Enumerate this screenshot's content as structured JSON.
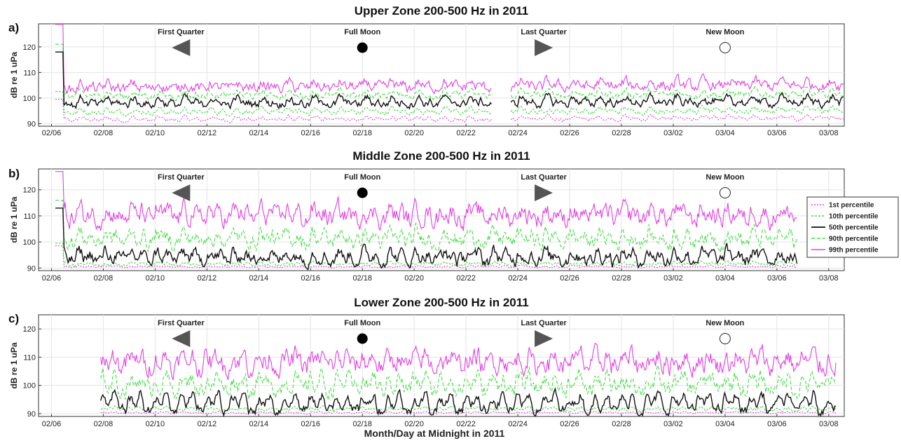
{
  "chart_data": [
    {
      "type": "line",
      "panel_label": "a)",
      "title": "Upper Zone 200-500 Hz in 2011",
      "ylabel": "dB re 1 uPa",
      "xlabel": "",
      "ylim": [
        89,
        129
      ],
      "yticks": [
        90,
        100,
        110,
        120
      ],
      "xlim": [
        -0.5,
        30.6
      ],
      "x_tick_labels": [
        "02/06",
        "02/08",
        "02/10",
        "02/12",
        "02/14",
        "02/16",
        "02/18",
        "02/20",
        "02/22",
        "02/24",
        "02/26",
        "02/28",
        "03/02",
        "03/04",
        "03/06",
        "03/08"
      ],
      "grid": true,
      "moon_phases": [
        {
          "label": "First Quarter",
          "day": 5,
          "symbol": "left-triangle"
        },
        {
          "label": "Full Moon",
          "day": 12,
          "symbol": "filled-circle"
        },
        {
          "label": "Last Quarter",
          "day": 19,
          "symbol": "right-triangle"
        },
        {
          "label": "New Moon",
          "day": 26,
          "symbol": "open-circle"
        }
      ],
      "data_range_days": [
        0.15,
        30.6
      ],
      "gap_days": [
        17.0,
        17.7
      ],
      "spike": {
        "day": 0.3,
        "p99": 129,
        "p50": 118
      },
      "series": [
        {
          "name": "1st percentile",
          "base": 91.5,
          "daily_amp": 1.2,
          "noise": 0.6,
          "color": "#e040e0"
        },
        {
          "name": "10th percentile",
          "base": 94.5,
          "daily_amp": 1.5,
          "noise": 0.8,
          "color": "#44dd44"
        },
        {
          "name": "50th percentile",
          "base": 98,
          "daily_amp": 2.5,
          "noise": 1.2,
          "color": "#111111"
        },
        {
          "name": "90th percentile",
          "base": 101,
          "daily_amp": 1.8,
          "noise": 1.0,
          "color": "#44dd44"
        },
        {
          "name": "99th percentile",
          "base": 104,
          "daily_amp": 2.0,
          "noise": 1.6,
          "color": "#e040e0"
        }
      ]
    },
    {
      "type": "line",
      "panel_label": "b)",
      "title": "Middle Zone 200-500 Hz in 2011",
      "ylabel": "dB re 1 uPa",
      "xlabel": "",
      "ylim": [
        89,
        128
      ],
      "yticks": [
        90,
        100,
        110,
        120
      ],
      "xlim": [
        -0.5,
        30.6
      ],
      "x_tick_labels": [
        "02/06",
        "02/08",
        "02/10",
        "02/12",
        "02/14",
        "02/16",
        "02/18",
        "02/20",
        "02/22",
        "02/24",
        "02/26",
        "02/28",
        "03/02",
        "03/04",
        "03/06",
        "03/08"
      ],
      "grid": true,
      "moon_phases": [
        {
          "label": "First Quarter",
          "day": 5,
          "symbol": "left-triangle"
        },
        {
          "label": "Full Moon",
          "day": 12,
          "symbol": "filled-circle"
        },
        {
          "label": "Last Quarter",
          "day": 19,
          "symbol": "right-triangle"
        },
        {
          "label": "New Moon",
          "day": 26,
          "symbol": "open-circle"
        }
      ],
      "data_range_days": [
        0.15,
        28.8
      ],
      "gap_days": [],
      "spike": {
        "day": 0.3,
        "p99": 127,
        "p50": 113
      },
      "series": [
        {
          "name": "1st percentile",
          "base": 90.5,
          "daily_amp": 0.3,
          "noise": 0.3,
          "color": "#e040e0"
        },
        {
          "name": "10th percentile",
          "base": 91.5,
          "daily_amp": 0.8,
          "noise": 0.5,
          "color": "#44dd44"
        },
        {
          "name": "50th percentile",
          "base": 94,
          "daily_amp": 3.5,
          "noise": 2.0,
          "color": "#111111"
        },
        {
          "name": "90th percentile",
          "base": 101,
          "daily_amp": 4.0,
          "noise": 2.5,
          "color": "#44dd44"
        },
        {
          "name": "99th percentile",
          "base": 110,
          "daily_amp": 4.0,
          "noise": 3.0,
          "color": "#e040e0"
        }
      ]
    },
    {
      "type": "line",
      "panel_label": "c)",
      "title": "Lower Zone 200-500 Hz in 2011",
      "ylabel": "dB re 1 uPa",
      "xlabel": "Month/Day at Midnight in 2011",
      "ylim": [
        89,
        125
      ],
      "yticks": [
        90,
        100,
        110,
        120
      ],
      "xlim": [
        -0.5,
        30.6
      ],
      "x_tick_labels": [
        "02/06",
        "02/08",
        "02/10",
        "02/12",
        "02/14",
        "02/16",
        "02/18",
        "02/20",
        "02/22",
        "02/24",
        "02/26",
        "02/28",
        "03/02",
        "03/04",
        "03/06",
        "03/08"
      ],
      "grid": true,
      "moon_phases": [
        {
          "label": "First Quarter",
          "day": 5,
          "symbol": "left-triangle"
        },
        {
          "label": "Full Moon",
          "day": 12,
          "symbol": "filled-circle"
        },
        {
          "label": "Last Quarter",
          "day": 19,
          "symbol": "right-triangle"
        },
        {
          "label": "New Moon",
          "day": 26,
          "symbol": "open-circle"
        }
      ],
      "data_range_days": [
        1.9,
        30.3
      ],
      "gap_days": [],
      "spike": null,
      "series": [
        {
          "name": "1st percentile",
          "base": 90.3,
          "daily_amp": 0.3,
          "noise": 0.3,
          "color": "#e040e0"
        },
        {
          "name": "10th percentile",
          "base": 91.5,
          "daily_amp": 1.0,
          "noise": 0.5,
          "color": "#44dd44"
        },
        {
          "name": "50th percentile",
          "base": 93,
          "daily_amp": 6.0,
          "noise": 1.5,
          "color": "#111111"
        },
        {
          "name": "90th percentile",
          "base": 100,
          "daily_amp": 5.0,
          "noise": 2.5,
          "color": "#44dd44"
        },
        {
          "name": "99th percentile",
          "base": 108,
          "daily_amp": 4.0,
          "noise": 3.0,
          "color": "#e040e0"
        }
      ]
    }
  ],
  "legend": {
    "placement": "right of panel b",
    "entries": [
      {
        "label": "1st percentile",
        "color": "#e040e0",
        "dash": "dotted"
      },
      {
        "label": "10th percentile",
        "color": "#44dd44",
        "dash": "dotted"
      },
      {
        "label": "50th percentile",
        "color": "#111111",
        "dash": "solid"
      },
      {
        "label": "90th percentile",
        "color": "#44dd44",
        "dash": "dashed"
      },
      {
        "label": "99th percentile",
        "color": "#e040e0",
        "dash": "solid"
      }
    ]
  }
}
